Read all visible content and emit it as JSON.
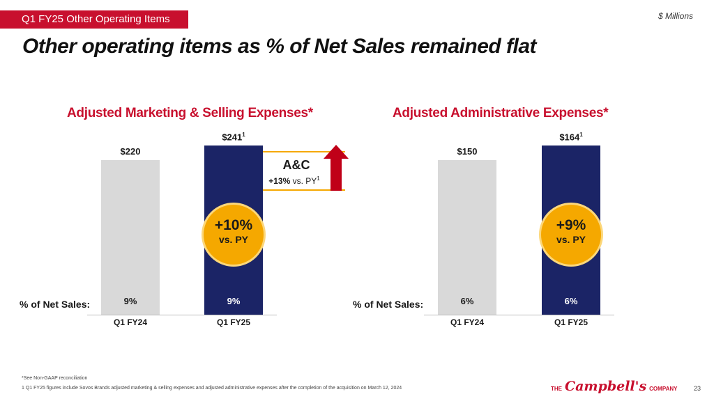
{
  "header": {
    "tag": "Q1 FY25 Other Operating Items",
    "units": "$ Millions",
    "title": "Other operating items as % of Net Sales remained flat"
  },
  "chart_data": [
    {
      "type": "bar",
      "title": "Adjusted Marketing & Selling Expenses*",
      "categories": [
        "Q1 FY24",
        "Q1 FY25"
      ],
      "values": [
        220,
        241
      ],
      "value_labels": [
        "$220",
        "$241"
      ],
      "footnote_marks": [
        "",
        "1"
      ],
      "pct_label": "% of Net Sales:",
      "pct_net_sales": [
        "9%",
        "9%"
      ],
      "growth": {
        "main": "+10%",
        "sub": "vs. PY"
      },
      "colors": [
        "#d9d9d9",
        "#1b2466"
      ],
      "callout": {
        "title": "A&C",
        "main": "+13%",
        "sub": "vs. PY",
        "mark": "1",
        "arrow_color": "#c00018"
      }
    },
    {
      "type": "bar",
      "title": "Adjusted Administrative Expenses*",
      "categories": [
        "Q1 FY24",
        "Q1 FY25"
      ],
      "values": [
        150,
        164
      ],
      "value_labels": [
        "$150",
        "$164"
      ],
      "footnote_marks": [
        "",
        "1"
      ],
      "pct_label": "% of Net Sales:",
      "pct_net_sales": [
        "6%",
        "6%"
      ],
      "growth": {
        "main": "+9%",
        "sub": "vs. PY"
      },
      "colors": [
        "#d9d9d9",
        "#1b2466"
      ]
    }
  ],
  "footer": {
    "note1": "*See Non-GAAP reconciliation",
    "note2": "1 Q1 FY25 figures include Sovos Brands adjusted marketing & selling expenses and adjusted administrative expenses after the completion of the acquisition on March 12, 2024",
    "logo_the": "THE",
    "logo_brand": "Campbell's",
    "logo_company": "COMPANY",
    "page": "23"
  }
}
